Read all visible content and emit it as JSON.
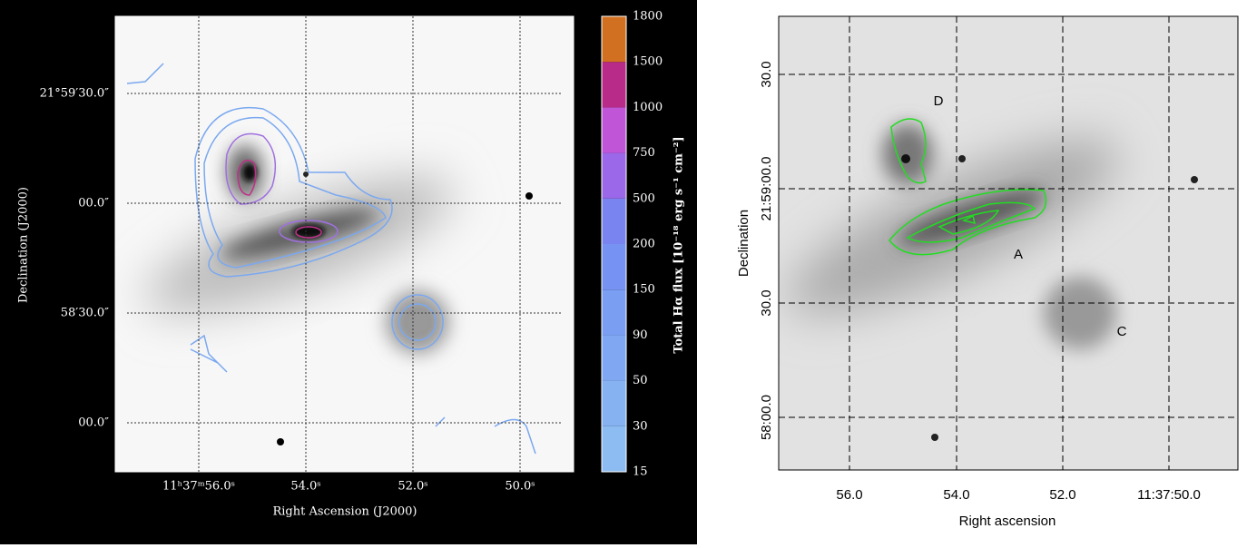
{
  "left_panel": {
    "x_label": "Right Ascension (J2000)",
    "y_label": "Declination (J2000)",
    "x_ticks": [
      "11ʰ37ᵐ56.0ˢ",
      "54.0ˢ",
      "52.0ˢ",
      "50.0ˢ"
    ],
    "y_ticks": [
      "21°59′30.0″",
      "00.0″",
      "58′30.0″",
      "00.0″"
    ],
    "colorbar": {
      "label": "Total Hα flux [10⁻¹⁸ erg s⁻¹ cm⁻²]",
      "ticks": [
        15,
        30,
        50,
        90,
        150,
        200,
        500,
        750,
        1000,
        1500,
        1800
      ]
    }
  },
  "right_panel": {
    "x_label": "Right ascension",
    "y_label": "Declination",
    "x_ticks": [
      "56.0",
      "54.0",
      "52.0",
      "11:37:50.0"
    ],
    "y_ticks": [
      "30.0",
      "21:59:00.0",
      "30.0",
      "58:00.0"
    ],
    "sources": [
      "D",
      "A",
      "C"
    ]
  }
}
